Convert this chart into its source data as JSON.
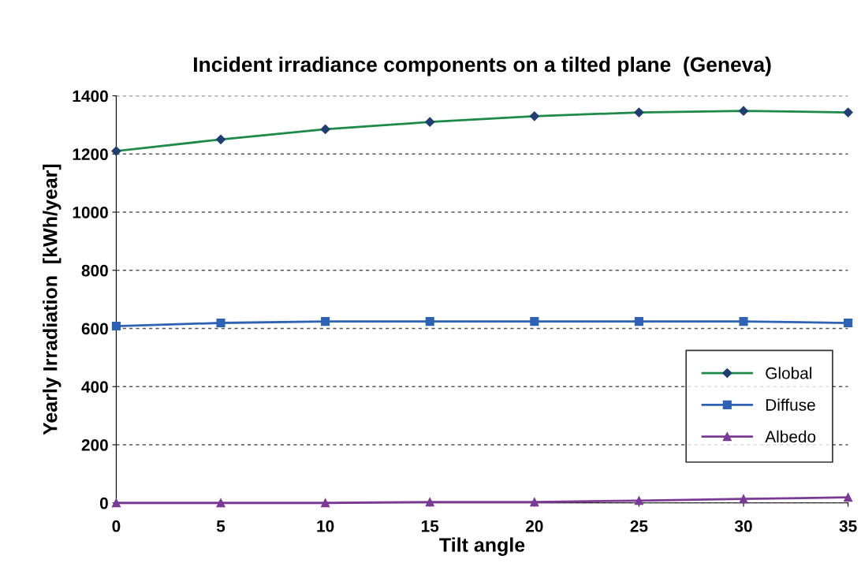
{
  "chart_data": {
    "type": "line",
    "title": "Incident irradiance components on a tilted plane  (Geneva)",
    "xlabel": "Tilt angle",
    "ylabel": "Yearly Irradiation  [kWh/year]",
    "x": [
      0,
      5,
      10,
      15,
      20,
      25,
      30,
      35
    ],
    "series": [
      {
        "name": "Global",
        "color": "#1e8a4a",
        "marker": "diamond",
        "values": [
          1210,
          1250,
          1285,
          1310,
          1330,
          1343,
          1348,
          1343
        ]
      },
      {
        "name": "Diffuse",
        "color": "#2e62b5",
        "marker": "square",
        "values": [
          608,
          619,
          624,
          624,
          624,
          624,
          624,
          619
        ]
      },
      {
        "name": "Albedo",
        "color": "#7b3a96",
        "marker": "triangle",
        "values": [
          0,
          0,
          0,
          3,
          3,
          8,
          14,
          19
        ]
      }
    ],
    "xlim": [
      0,
      35
    ],
    "xticks": [
      0,
      5,
      10,
      15,
      20,
      25,
      30,
      35
    ],
    "ylim": [
      0,
      1400
    ],
    "yticks": [
      0,
      200,
      400,
      600,
      800,
      1000,
      1200,
      1400
    ],
    "grid": "y",
    "legend": "bottom right",
    "line_style": "solid"
  }
}
